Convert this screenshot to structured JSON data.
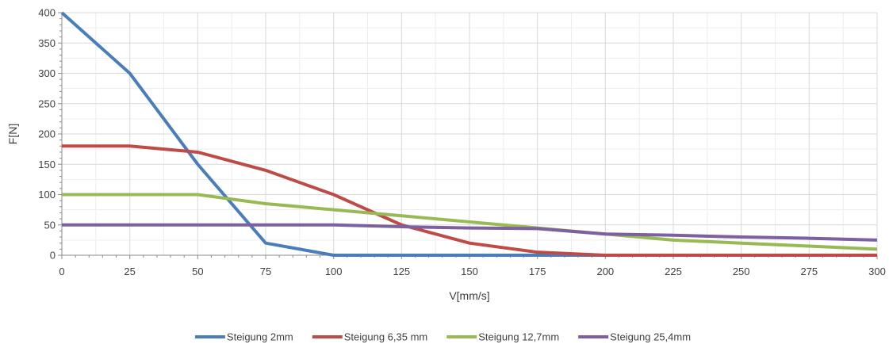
{
  "chart_data": {
    "type": "line",
    "title": "",
    "xlabel": "V[mm/s]",
    "ylabel": "F[N]",
    "xlim": [
      0,
      300
    ],
    "ylim": [
      0,
      400
    ],
    "x_ticks": [
      0,
      25,
      50,
      75,
      100,
      125,
      150,
      175,
      200,
      225,
      250,
      275,
      300
    ],
    "y_ticks": [
      0,
      50,
      100,
      150,
      200,
      250,
      300,
      350,
      400
    ],
    "x": [
      0,
      25,
      50,
      75,
      100,
      125,
      150,
      175,
      200,
      225,
      250,
      275,
      300
    ],
    "grid": true,
    "legend_position": "bottom",
    "series": [
      {
        "name": "Steigung 2mm",
        "color": "#4a7ebb",
        "values": [
          400,
          300,
          150,
          20,
          0,
          0,
          0,
          0,
          0,
          0,
          0,
          0,
          0
        ]
      },
      {
        "name": "Steigung 6,35 mm",
        "color": "#be4b48",
        "values": [
          180,
          180,
          170,
          140,
          100,
          50,
          20,
          5,
          0,
          0,
          0,
          0,
          0
        ]
      },
      {
        "name": "Steigung 12,7mm",
        "color": "#98b954",
        "values": [
          100,
          100,
          100,
          85,
          75,
          65,
          55,
          45,
          35,
          25,
          20,
          15,
          10
        ]
      },
      {
        "name": "Steigung 25,4mm",
        "color": "#7d60a0",
        "values": [
          50,
          50,
          50,
          50,
          50,
          47,
          45,
          44,
          35,
          33,
          30,
          28,
          25
        ]
      }
    ]
  }
}
